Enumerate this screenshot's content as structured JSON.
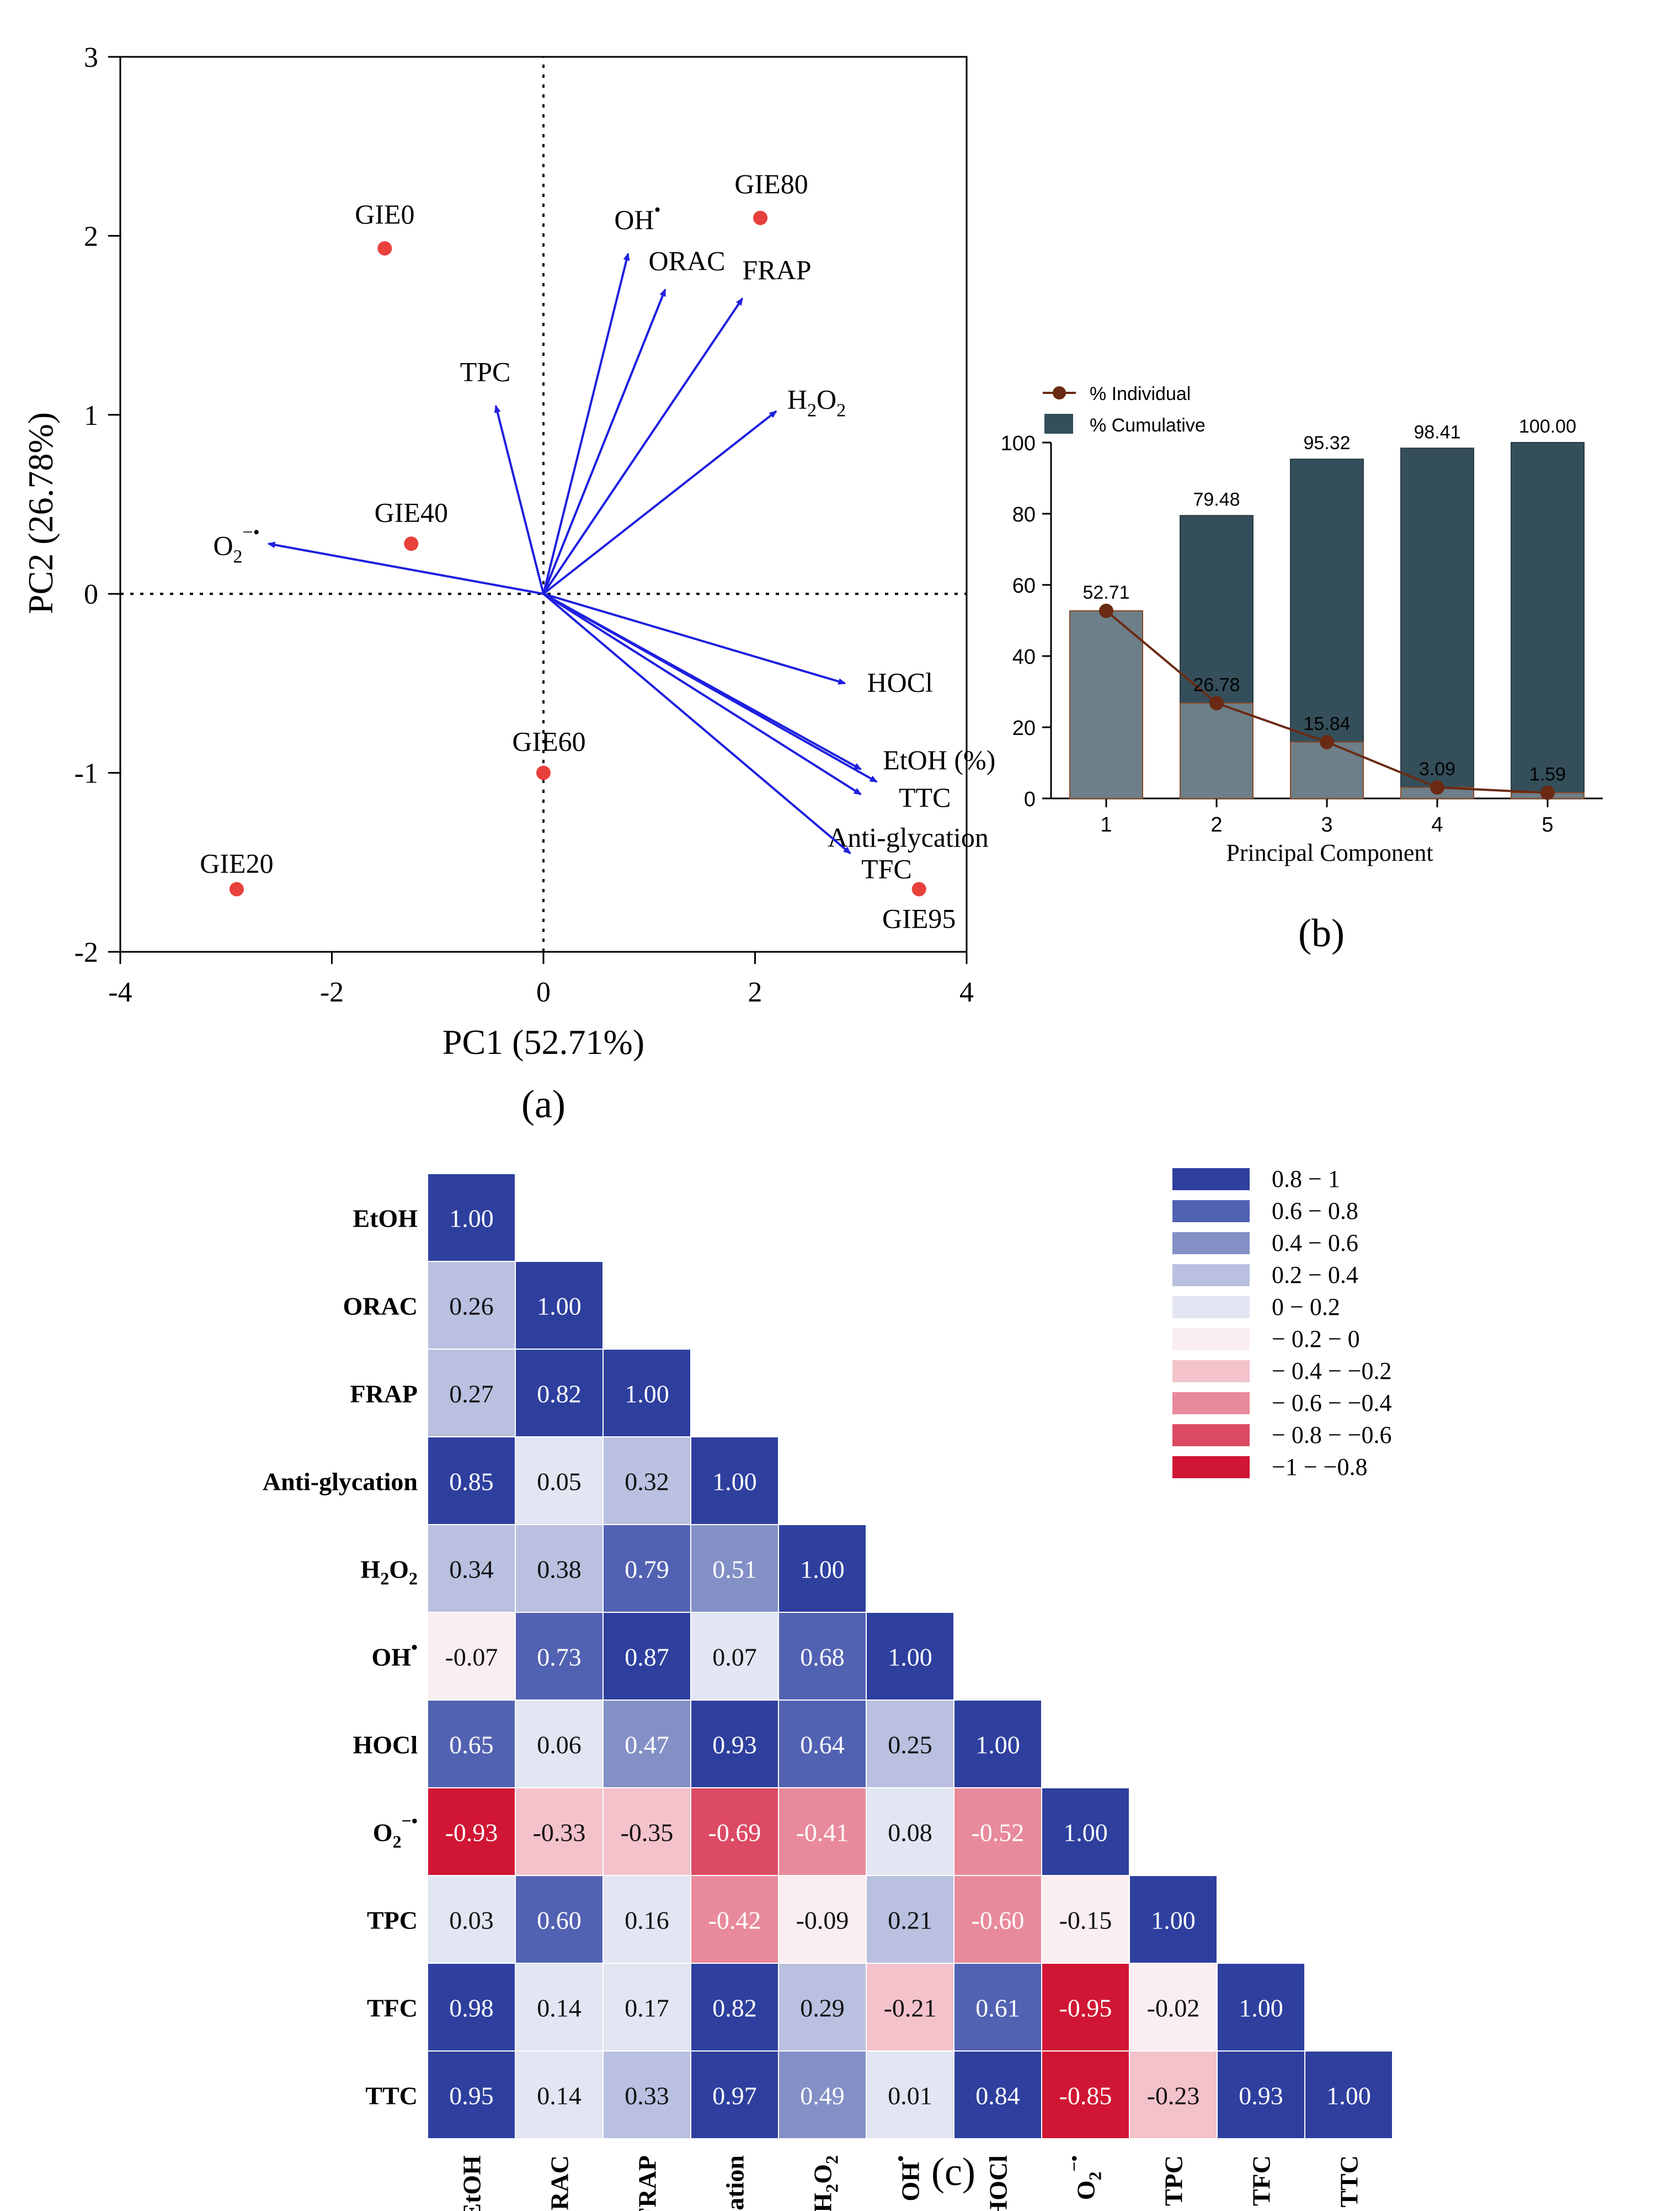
{
  "chart_data": [
    {
      "type": "scatter",
      "panel": "(a)",
      "xlabel": "PC1 (52.71%)",
      "ylabel": "PC2 (26.78%)",
      "xlim": [
        -4,
        4
      ],
      "ylim": [
        -2,
        3
      ],
      "xticks": [
        "-4",
        "-2",
        "0",
        "2",
        "4"
      ],
      "yticks": [
        "-2",
        "-1",
        "0",
        "1",
        "2",
        "3"
      ],
      "samples": [
        {
          "name": "GIE0",
          "x": -1.5,
          "y": 1.93
        },
        {
          "name": "GIE20",
          "x": -2.9,
          "y": -1.65
        },
        {
          "name": "GIE40",
          "x": -1.25,
          "y": 0.28
        },
        {
          "name": "GIE60",
          "x": 0.0,
          "y": -1.0
        },
        {
          "name": "GIE80",
          "x": 2.05,
          "y": 2.1
        },
        {
          "name": "GIE95",
          "x": 3.55,
          "y": -1.65
        }
      ],
      "loadings": [
        {
          "name": "OH",
          "sup": "•",
          "x": 0.8,
          "y": 1.9
        },
        {
          "name": "ORAC",
          "x": 1.15,
          "y": 1.7
        },
        {
          "name": "FRAP",
          "x": 1.88,
          "y": 1.65
        },
        {
          "name": "H",
          "sub1": "2",
          "name2": "O",
          "sub2": "2",
          "label_text": "H2O2",
          "x": 2.2,
          "y": 1.02
        },
        {
          "name": "TPC",
          "x": -0.45,
          "y": 1.05
        },
        {
          "name": "O",
          "sub1": "2",
          "sup": "−•",
          "label_text": "O2−•",
          "x": -2.6,
          "y": 0.28
        },
        {
          "name": "HOCl",
          "x": 2.85,
          "y": -0.5
        },
        {
          "name": "EtOH (%)",
          "x": 3.0,
          "y": -0.98
        },
        {
          "name": "TTC",
          "x": 3.15,
          "y": -1.05
        },
        {
          "name": "Anti-glycation",
          "x": 3.0,
          "y": -1.12
        },
        {
          "name": "TFC",
          "x": 2.9,
          "y": -1.45
        }
      ]
    },
    {
      "type": "bar",
      "panel": "(b)",
      "xlabel": "Principal Component",
      "ylabel": "",
      "ylim": [
        0,
        100
      ],
      "yticks": [
        "0",
        "20",
        "40",
        "60",
        "80",
        "100"
      ],
      "categories": [
        "1",
        "2",
        "3",
        "4",
        "5"
      ],
      "series": [
        {
          "name": "% Individual",
          "values": [
            52.71,
            26.78,
            15.84,
            3.09,
            1.59
          ],
          "labels": [
            "52.71",
            "26.78",
            "15.84",
            "3.09",
            "1.59"
          ],
          "color": "#6b2a14"
        },
        {
          "name": "% Cumulative",
          "values": [
            52.71,
            79.48,
            95.32,
            98.41,
            100.0
          ],
          "labels": [
            "",
            "79.48",
            "95.32",
            "98.41",
            "100.00"
          ],
          "color": "#354f5a"
        }
      ],
      "individual_bar_color": "#6d7f88",
      "legend": "top-left"
    },
    {
      "type": "heatmap",
      "panel": "(c)",
      "variables": [
        "EtOH",
        "ORAC",
        "FRAP",
        "Anti-glycation",
        "H2O2",
        "OH•",
        "HOCl",
        "O2−•",
        "TPC",
        "TFC",
        "TTC"
      ],
      "matrix": [
        [
          1.0
        ],
        [
          0.26,
          1.0
        ],
        [
          0.27,
          0.82,
          1.0
        ],
        [
          0.85,
          0.05,
          0.32,
          1.0
        ],
        [
          0.34,
          0.38,
          0.79,
          0.51,
          1.0
        ],
        [
          -0.07,
          0.73,
          0.87,
          0.07,
          0.68,
          1.0
        ],
        [
          0.65,
          0.06,
          0.47,
          0.93,
          0.64,
          0.25,
          1.0
        ],
        [
          -0.93,
          -0.33,
          -0.35,
          -0.69,
          -0.41,
          0.08,
          -0.52,
          1.0
        ],
        [
          0.03,
          0.6,
          0.16,
          -0.42,
          -0.09,
          0.21,
          -0.6,
          -0.15,
          1.0
        ],
        [
          0.98,
          0.14,
          0.17,
          0.82,
          0.29,
          -0.21,
          0.61,
          -0.95,
          -0.02,
          1.0
        ],
        [
          0.95,
          0.14,
          0.33,
          0.97,
          0.49,
          0.01,
          0.84,
          -0.85,
          -0.23,
          0.93,
          1.0
        ]
      ],
      "legend": [
        {
          "label": "0.8 − 1",
          "color": "#2e3f9e"
        },
        {
          "label": "0.6 − 0.8",
          "color": "#5262b2"
        },
        {
          "label": "0.4 − 0.6",
          "color": "#8390c6"
        },
        {
          "label": "0.2 − 0.4",
          "color": "#b9c0e0"
        },
        {
          "label": "0    − 0.2",
          "color": "#e2e5f2"
        },
        {
          "label": "− 0.2 − 0",
          "color": "#fbeef0"
        },
        {
          "label": "− 0.4 − −0.2",
          "color": "#f3c2cb"
        },
        {
          "label": "− 0.6 − −0.4",
          "color": "#e88a9b"
        },
        {
          "label": "− 0.8 − −0.6",
          "color": "#dc4a63"
        },
        {
          "label": "−1 − −0.8",
          "color": "#d01634"
        }
      ],
      "legend_position": "top-right"
    }
  ],
  "labels": {
    "a": "(a)",
    "b": "(b)",
    "c": "(c)"
  }
}
